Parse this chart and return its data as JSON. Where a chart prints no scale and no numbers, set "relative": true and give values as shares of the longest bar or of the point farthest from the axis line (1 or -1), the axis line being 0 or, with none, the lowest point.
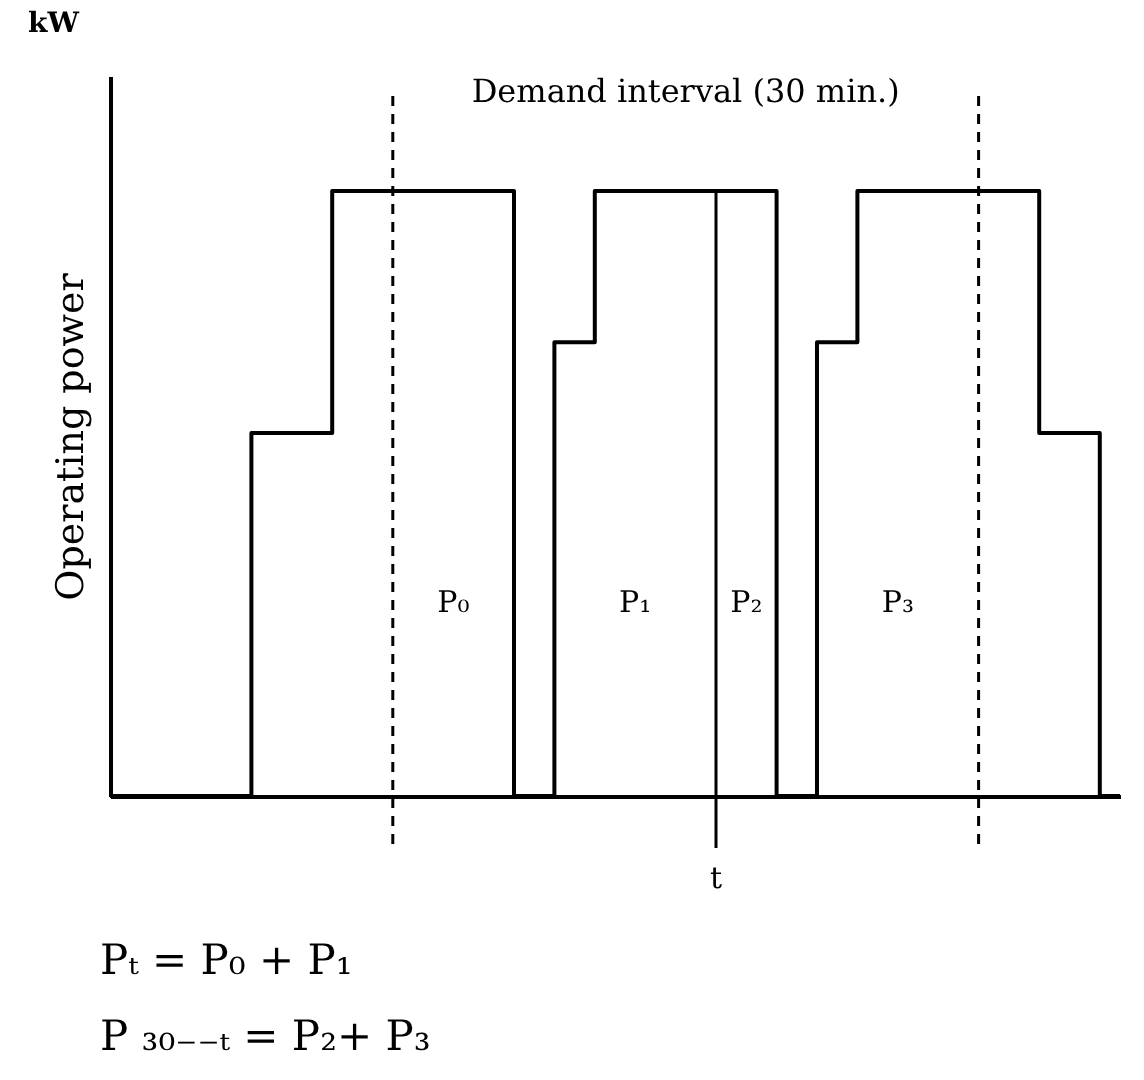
{
  "chart_data": {
    "type": "step",
    "relative": true,
    "ylabel": "Operating power",
    "categories": [
      null,
      null,
      null,
      null,
      null,
      null,
      null,
      null,
      null,
      null,
      null,
      null,
      null,
      null,
      null,
      null,
      null,
      null,
      null,
      null,
      null,
      null,
      null,
      null,
      null,
      null,
      null,
      null,
      null,
      null,
      null,
      null,
      null,
      null,
      null,
      null,
      null,
      null,
      null,
      null,
      null,
      null,
      null,
      null,
      null,
      null,
      null,
      null,
      null,
      null,
      null
    ],
    "series": [
      {
        "color": "#000000",
        "values": [
          0,
          0,
          0,
          0,
          0,
          0,
          0,
          0.6,
          0.6,
          0.6,
          0.6,
          1,
          1,
          1,
          1,
          1,
          1,
          1,
          1,
          1,
          0,
          0,
          0.75,
          0.75,
          1,
          1,
          1,
          1,
          1,
          1,
          1,
          1,
          1,
          0,
          0,
          0.75,
          0.75,
          1,
          1,
          1,
          1,
          1,
          1,
          1,
          1,
          1,
          0.6,
          0.6,
          0.6,
          0,
          0
        ]
      }
    ],
    "annotations": [
      "kW",
      "Demand interval (30 min.)",
      "t",
      "P₀",
      "P₁",
      "P₂",
      "P₃",
      "Pₜ = P₀ + P₁",
      "P ₃₀₋₋ₜ = P₂+ P₃"
    ],
    "grid": false,
    "marker": "none",
    "line_style": "solid"
  }
}
